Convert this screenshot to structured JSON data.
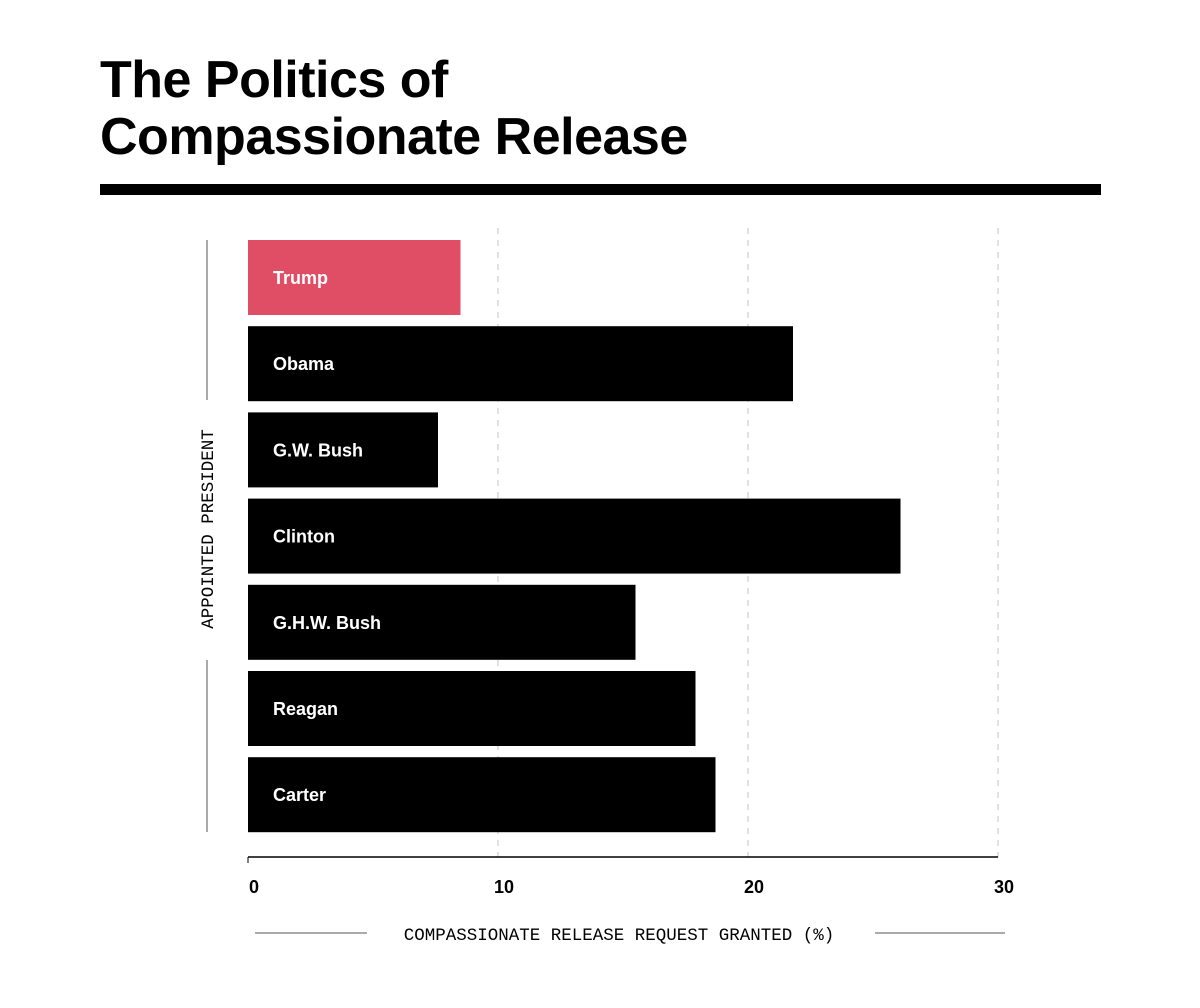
{
  "title_lines": [
    "The Politics of",
    "Compassionate Release"
  ],
  "chart_data": {
    "type": "bar",
    "orientation": "horizontal",
    "categories": [
      "Trump",
      "Obama",
      "G.W. Bush",
      "Clinton",
      "G.H.W. Bush",
      "Reagan",
      "Carter"
    ],
    "values": [
      8.5,
      21.8,
      7.6,
      26.1,
      15.5,
      17.9,
      18.7
    ],
    "xlabel": "COMPASSIONATE RELEASE REQUEST GRANTED (%)",
    "ylabel": "APPOINTED PRESIDENT",
    "xlim": [
      0,
      30
    ],
    "xticks": [
      0,
      10,
      20,
      30
    ],
    "grid": true,
    "colors": {
      "highlight": "#e04e66",
      "bar": "#000000",
      "grid": "#cccccc",
      "axis": "#000000",
      "label": "#ffffff"
    },
    "highlight_category": "Trump"
  }
}
